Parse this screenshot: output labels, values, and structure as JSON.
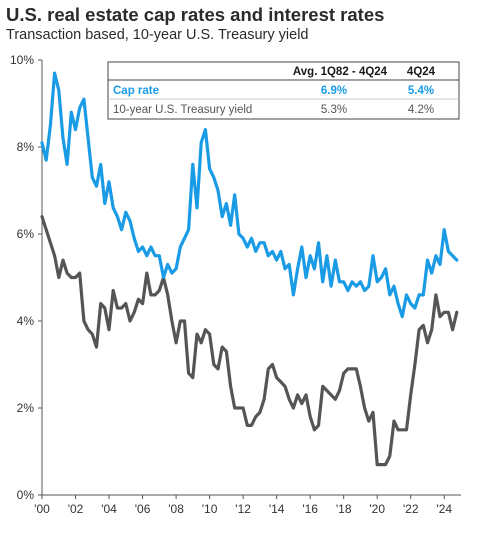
{
  "header": {
    "title": "U.S. real estate cap rates and interest rates",
    "subtitle": "Transaction based, 10-year U.S. Treasury yield"
  },
  "legend": {
    "col_avg": "Avg. 1Q82 - 4Q24",
    "col_latest": "4Q24",
    "rows": [
      {
        "label": "Cap rate",
        "avg": "6.9%",
        "latest": "5.4%",
        "color": "#1a9be6"
      },
      {
        "label": "10-year U.S. Treasury yield",
        "avg": "5.3%",
        "latest": "4.2%",
        "color": "#555555"
      }
    ]
  },
  "chart_data": {
    "type": "line",
    "title": "U.S. real estate cap rates and interest rates",
    "subtitle": "Transaction based, 10-year U.S. Treasury yield",
    "xlim": [
      2000,
      2025
    ],
    "ylim": [
      0,
      10
    ],
    "x_tick_values": [
      2000,
      2002,
      2004,
      2006,
      2008,
      2010,
      2012,
      2014,
      2016,
      2018,
      2020,
      2022,
      2024
    ],
    "x_tick_labels": [
      "'00",
      "'02",
      "'04",
      "'06",
      "'08",
      "'10",
      "'12",
      "'14",
      "'16",
      "'18",
      "'20",
      "'22",
      "'24"
    ],
    "y_tick_values": [
      0,
      2,
      4,
      6,
      8,
      10
    ],
    "y_tick_labels": [
      "0%",
      "2%",
      "4%",
      "6%",
      "8%",
      "10%"
    ],
    "grid": false,
    "legend_position": "top-right",
    "series": [
      {
        "name": "Cap rate",
        "color": "#1a9be6",
        "x": [
          2000.0,
          2000.25,
          2000.5,
          2000.75,
          2001.0,
          2001.25,
          2001.5,
          2001.75,
          2002.0,
          2002.25,
          2002.5,
          2002.75,
          2003.0,
          2003.25,
          2003.5,
          2003.75,
          2004.0,
          2004.25,
          2004.5,
          2004.75,
          2005.0,
          2005.25,
          2005.5,
          2005.75,
          2006.0,
          2006.25,
          2006.5,
          2006.75,
          2007.0,
          2007.25,
          2007.5,
          2007.75,
          2008.0,
          2008.25,
          2008.5,
          2008.75,
          2009.0,
          2009.25,
          2009.5,
          2009.75,
          2010.0,
          2010.25,
          2010.5,
          2010.75,
          2011.0,
          2011.25,
          2011.5,
          2011.75,
          2012.0,
          2012.25,
          2012.5,
          2012.75,
          2013.0,
          2013.25,
          2013.5,
          2013.75,
          2014.0,
          2014.25,
          2014.5,
          2014.75,
          2015.0,
          2015.25,
          2015.5,
          2015.75,
          2016.0,
          2016.25,
          2016.5,
          2016.75,
          2017.0,
          2017.25,
          2017.5,
          2017.75,
          2018.0,
          2018.25,
          2018.5,
          2018.75,
          2019.0,
          2019.25,
          2019.5,
          2019.75,
          2020.0,
          2020.25,
          2020.5,
          2020.75,
          2021.0,
          2021.25,
          2021.5,
          2021.75,
          2022.0,
          2022.25,
          2022.5,
          2022.75,
          2023.0,
          2023.25,
          2023.5,
          2023.75,
          2024.0,
          2024.25,
          2024.5,
          2024.75
        ],
        "y": [
          8.1,
          7.7,
          8.5,
          9.7,
          9.3,
          8.2,
          7.6,
          8.8,
          8.4,
          8.9,
          9.1,
          8.2,
          7.3,
          7.1,
          7.6,
          6.7,
          7.2,
          6.6,
          6.4,
          6.1,
          6.5,
          6.3,
          5.9,
          5.6,
          5.7,
          5.5,
          5.7,
          5.5,
          5.5,
          5.0,
          5.3,
          5.1,
          5.2,
          5.7,
          5.9,
          6.1,
          7.6,
          6.6,
          8.1,
          8.4,
          7.5,
          7.3,
          7.0,
          6.4,
          6.7,
          6.2,
          6.9,
          6.0,
          5.9,
          5.7,
          5.9,
          5.6,
          5.8,
          5.8,
          5.5,
          5.6,
          5.4,
          5.6,
          5.2,
          5.3,
          4.6,
          5.2,
          5.7,
          5.0,
          5.5,
          5.2,
          5.8,
          4.9,
          5.5,
          4.8,
          5.4,
          4.9,
          4.9,
          4.7,
          4.9,
          4.8,
          4.9,
          4.7,
          4.8,
          5.5,
          4.9,
          5.0,
          5.2,
          4.6,
          4.8,
          4.4,
          4.1,
          4.6,
          4.4,
          4.3,
          4.6,
          4.6,
          5.4,
          5.1,
          5.5,
          5.3,
          6.1,
          5.6,
          5.5,
          5.4
        ]
      },
      {
        "name": "10-year U.S. Treasury yield",
        "color": "#555555",
        "x": [
          2000.0,
          2000.25,
          2000.5,
          2000.75,
          2001.0,
          2001.25,
          2001.5,
          2001.75,
          2002.0,
          2002.25,
          2002.5,
          2002.75,
          2003.0,
          2003.25,
          2003.5,
          2003.75,
          2004.0,
          2004.25,
          2004.5,
          2004.75,
          2005.0,
          2005.25,
          2005.5,
          2005.75,
          2006.0,
          2006.25,
          2006.5,
          2006.75,
          2007.0,
          2007.25,
          2007.5,
          2007.75,
          2008.0,
          2008.25,
          2008.5,
          2008.75,
          2009.0,
          2009.25,
          2009.5,
          2009.75,
          2010.0,
          2010.25,
          2010.5,
          2010.75,
          2011.0,
          2011.25,
          2011.5,
          2011.75,
          2012.0,
          2012.25,
          2012.5,
          2012.75,
          2013.0,
          2013.25,
          2013.5,
          2013.75,
          2014.0,
          2014.25,
          2014.5,
          2014.75,
          2015.0,
          2015.25,
          2015.5,
          2015.75,
          2016.0,
          2016.25,
          2016.5,
          2016.75,
          2017.0,
          2017.25,
          2017.5,
          2017.75,
          2018.0,
          2018.25,
          2018.5,
          2018.75,
          2019.0,
          2019.25,
          2019.5,
          2019.75,
          2020.0,
          2020.25,
          2020.5,
          2020.75,
          2021.0,
          2021.25,
          2021.5,
          2021.75,
          2022.0,
          2022.25,
          2022.5,
          2022.75,
          2023.0,
          2023.25,
          2023.5,
          2023.75,
          2024.0,
          2024.25,
          2024.5,
          2024.75
        ],
        "y": [
          6.4,
          6.1,
          5.8,
          5.5,
          5.0,
          5.4,
          5.1,
          5.0,
          5.0,
          5.1,
          4.0,
          3.8,
          3.7,
          3.4,
          4.4,
          4.3,
          3.8,
          4.7,
          4.3,
          4.3,
          4.4,
          4.0,
          4.2,
          4.5,
          4.4,
          5.1,
          4.6,
          4.6,
          4.7,
          5.0,
          4.6,
          4.0,
          3.5,
          4.0,
          4.0,
          2.8,
          2.7,
          3.7,
          3.5,
          3.8,
          3.7,
          3.0,
          2.9,
          3.4,
          3.3,
          2.5,
          2.0,
          2.0,
          2.0,
          1.6,
          1.6,
          1.8,
          1.9,
          2.2,
          2.9,
          3.0,
          2.7,
          2.6,
          2.5,
          2.2,
          2.0,
          2.3,
          2.1,
          2.3,
          1.8,
          1.5,
          1.6,
          2.5,
          2.4,
          2.3,
          2.2,
          2.4,
          2.8,
          2.9,
          2.9,
          2.9,
          2.5,
          2.0,
          1.7,
          1.9,
          0.7,
          0.7,
          0.7,
          0.9,
          1.7,
          1.5,
          1.5,
          1.5,
          2.3,
          3.0,
          3.8,
          3.9,
          3.5,
          3.8,
          4.6,
          4.1,
          4.2,
          4.2,
          3.8,
          4.2
        ]
      }
    ]
  }
}
